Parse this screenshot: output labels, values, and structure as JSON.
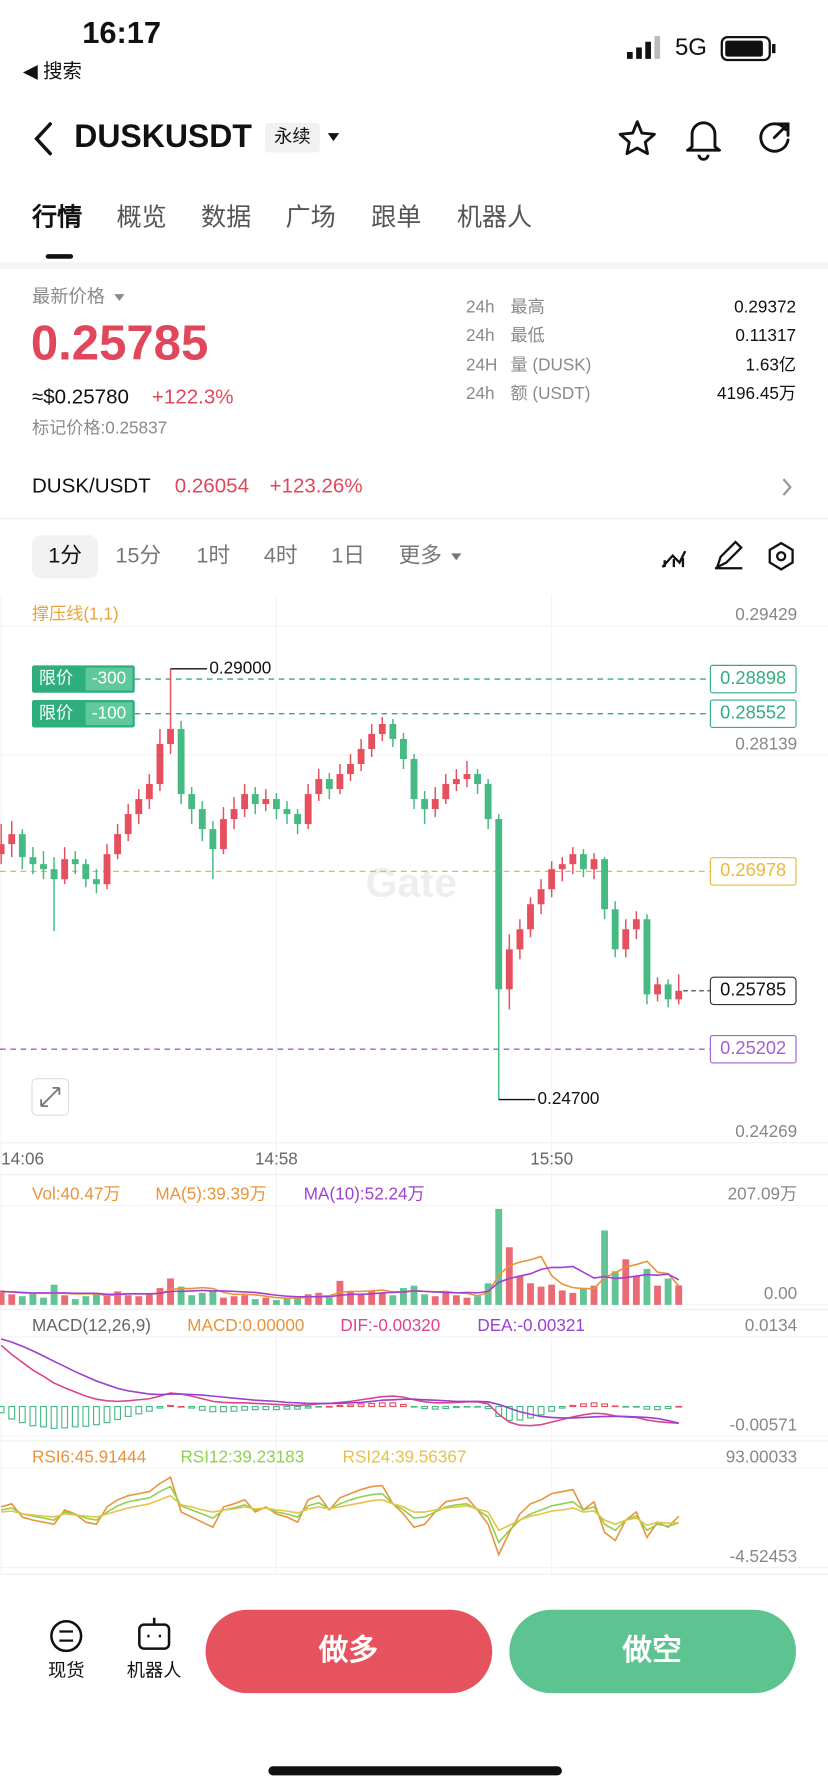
{
  "status": {
    "time": "16:17",
    "back": "◀ 搜索",
    "network": "5G"
  },
  "header": {
    "symbol": "DUSKUSDT",
    "badge": "永续"
  },
  "tabs": [
    "行情",
    "概览",
    "数据",
    "广场",
    "跟单",
    "机器人"
  ],
  "ticker": {
    "price_label": "最新价格",
    "price": "0.25785",
    "usd": "≈$0.25780",
    "change": "+122.3%",
    "mark": "标记价格:0.25837",
    "stats": [
      [
        "24h",
        "最高",
        "0.29372"
      ],
      [
        "24h",
        "最低",
        "0.11317"
      ],
      [
        "24H",
        "量 (DUSK)",
        "1.63亿"
      ],
      [
        "24h",
        "额 (USDT)",
        "4196.45万"
      ]
    ]
  },
  "spot": {
    "pair": "DUSK/USDT",
    "price": "0.26054",
    "change": "+123.26%"
  },
  "intervals": [
    "1分",
    "15分",
    "1时",
    "4时",
    "1日",
    "更多"
  ],
  "chart_data": {
    "type": "candlestick",
    "indicator": "撑压线(1,1)",
    "watermark": "Gate",
    "x": [
      "14:06",
      null,
      null,
      null,
      null,
      null,
      null,
      null,
      null,
      null,
      null,
      null,
      null,
      null,
      null,
      null,
      null,
      null,
      null,
      null,
      null,
      null,
      null,
      null,
      null,
      null,
      "14:58",
      null,
      null,
      null,
      null,
      null,
      null,
      null,
      null,
      null,
      null,
      null,
      null,
      null,
      null,
      null,
      null,
      null,
      null,
      null,
      null,
      null,
      null,
      null,
      null,
      null,
      "15:50",
      null,
      null,
      null,
      null,
      null,
      null,
      null,
      null,
      null,
      null,
      null,
      null
    ],
    "open": [
      0.2715,
      0.2725,
      0.2735,
      0.2712,
      0.2705,
      0.27,
      0.269,
      0.271,
      0.2705,
      0.269,
      0.2685,
      0.2715,
      0.2735,
      0.2755,
      0.277,
      0.2785,
      0.2825,
      0.284,
      0.2775,
      0.276,
      0.274,
      0.272,
      0.275,
      0.276,
      0.2775,
      0.2765,
      0.277,
      0.276,
      0.2755,
      0.2745,
      0.2775,
      0.279,
      0.278,
      0.2795,
      0.2805,
      0.282,
      0.2835,
      0.2845,
      0.283,
      0.281,
      0.277,
      0.276,
      0.277,
      0.2785,
      0.279,
      0.2795,
      0.2785,
      0.275,
      0.258,
      0.262,
      0.264,
      0.2665,
      0.268,
      0.27,
      0.2705,
      0.2715,
      0.27,
      0.271,
      0.266,
      0.262,
      0.264,
      0.265,
      0.2575,
      0.2585,
      0.257
    ],
    "high": [
      0.2745,
      0.2748,
      0.274,
      0.2722,
      0.2718,
      0.2712,
      0.2722,
      0.2718,
      0.271,
      0.27,
      0.2725,
      0.2745,
      0.2765,
      0.278,
      0.2795,
      0.284,
      0.29,
      0.2848,
      0.2782,
      0.2768,
      0.2748,
      0.2762,
      0.2772,
      0.2785,
      0.2782,
      0.278,
      0.2776,
      0.2768,
      0.276,
      0.2785,
      0.28,
      0.2796,
      0.2805,
      0.2815,
      0.283,
      0.2845,
      0.2852,
      0.285,
      0.2836,
      0.2815,
      0.2778,
      0.2782,
      0.2795,
      0.28,
      0.2808,
      0.28,
      0.279,
      0.2755,
      0.2635,
      0.265,
      0.2672,
      0.269,
      0.2708,
      0.2712,
      0.2722,
      0.272,
      0.2716,
      0.2712,
      0.2668,
      0.265,
      0.2658,
      0.2655,
      0.2592,
      0.259,
      0.2595
    ],
    "low": [
      0.2705,
      0.2712,
      0.27,
      0.2695,
      0.269,
      0.2638,
      0.2685,
      0.2695,
      0.2682,
      0.2676,
      0.268,
      0.271,
      0.2728,
      0.2745,
      0.276,
      0.2778,
      0.2815,
      0.2765,
      0.2745,
      0.2728,
      0.269,
      0.2715,
      0.274,
      0.2752,
      0.2755,
      0.2758,
      0.275,
      0.2745,
      0.2735,
      0.274,
      0.2768,
      0.277,
      0.2775,
      0.2788,
      0.2798,
      0.2812,
      0.2828,
      0.2822,
      0.28,
      0.276,
      0.2745,
      0.2752,
      0.2765,
      0.2778,
      0.2782,
      0.2775,
      0.274,
      0.247,
      0.256,
      0.261,
      0.2632,
      0.2655,
      0.2672,
      0.2688,
      0.2695,
      0.2692,
      0.269,
      0.265,
      0.2612,
      0.2612,
      0.263,
      0.2565,
      0.2568,
      0.2562,
      0.2565
    ],
    "close": [
      0.2725,
      0.2735,
      0.2712,
      0.2705,
      0.27,
      0.269,
      0.271,
      0.2705,
      0.269,
      0.2685,
      0.2715,
      0.2735,
      0.2755,
      0.277,
      0.2785,
      0.2825,
      0.284,
      0.2775,
      0.276,
      0.274,
      0.272,
      0.275,
      0.276,
      0.2775,
      0.2765,
      0.277,
      0.276,
      0.2755,
      0.2745,
      0.2775,
      0.279,
      0.278,
      0.2795,
      0.2805,
      0.282,
      0.2835,
      0.2845,
      0.283,
      0.281,
      0.277,
      0.276,
      0.277,
      0.2785,
      0.279,
      0.2795,
      0.2785,
      0.275,
      0.258,
      0.262,
      0.264,
      0.2665,
      0.268,
      0.27,
      0.2705,
      0.2715,
      0.27,
      0.271,
      0.266,
      0.262,
      0.264,
      0.265,
      0.2575,
      0.2585,
      0.257,
      0.25785
    ],
    "up_color": "#e6505e",
    "down_color": "#47b983",
    "ylim": [
      0.24269,
      0.29429
    ],
    "yticks": [
      0.29429,
      0.28139,
      0.24269
    ],
    "levels": [
      {
        "value": 0.28898,
        "color": "#2fae7d",
        "tag": "限价",
        "qty": "-300"
      },
      {
        "value": 0.28552,
        "color": "#2fae7d",
        "tag": "限价",
        "qty": "-100"
      },
      {
        "value": 0.26978,
        "color": "#e9b93a"
      },
      {
        "value": 0.25202,
        "color": "#a45fd6"
      }
    ],
    "extremes": [
      {
        "value": 0.29,
        "label": "0.29000"
      },
      {
        "value": 0.247,
        "label": "0.24700"
      }
    ],
    "volume": {
      "legend": [
        {
          "text": "Vol:40.47万",
          "color": "#e8943a"
        },
        {
          "text": "MA(5):39.39万",
          "color": "#e8943a"
        },
        {
          "text": "MA(10):52.24万",
          "color": "#a33fcf"
        }
      ],
      "values": [
        30,
        22,
        18,
        25,
        15,
        42,
        20,
        12,
        18,
        25,
        22,
        28,
        20,
        18,
        24,
        35,
        55,
        38,
        20,
        25,
        30,
        15,
        18,
        20,
        12,
        15,
        10,
        14,
        18,
        22,
        25,
        15,
        50,
        28,
        22,
        30,
        25,
        20,
        35,
        40,
        22,
        18,
        25,
        20,
        15,
        18,
        45,
        200,
        120,
        60,
        45,
        38,
        42,
        30,
        25,
        35,
        40,
        155,
        70,
        95,
        60,
        75,
        40,
        55,
        40.47
      ],
      "ma5": [
        28,
        27,
        25,
        24,
        24,
        24,
        24,
        23,
        23,
        23,
        19,
        21,
        23,
        23,
        23,
        23,
        32,
        34,
        34,
        36,
        34,
        26,
        22,
        22,
        21,
        18,
        15,
        14,
        14,
        16,
        18,
        19,
        26,
        28,
        28,
        29,
        31,
        27,
        27,
        30,
        28,
        27,
        28,
        25,
        24,
        19,
        25,
        62,
        82,
        89,
        94,
        101,
        61,
        43,
        36,
        34,
        34,
        57,
        67,
        79,
        84,
        91,
        68,
        65,
        39.39
      ],
      "ma10": [
        28,
        27,
        26,
        25,
        25,
        25,
        25,
        24,
        24,
        24,
        22,
        22,
        23,
        23,
        23,
        24,
        28,
        28,
        29,
        30,
        29,
        29,
        28,
        27,
        26,
        23,
        20,
        18,
        17,
        17,
        17,
        17,
        20,
        22,
        22,
        23,
        25,
        26,
        27,
        29,
        28,
        27,
        26,
        25,
        26,
        25,
        28,
        47,
        55,
        60,
        65,
        74,
        78,
        78,
        80,
        68,
        56,
        59,
        55,
        57,
        60,
        63,
        62,
        64,
        52.24
      ],
      "ylim": [
        0,
        207.09
      ],
      "yticks": [
        {
          "value": 207.09,
          "label": "207.09万"
        },
        {
          "value": 0,
          "label": "0.00"
        }
      ]
    },
    "macd": {
      "legend": [
        {
          "text": "MACD(12,26,9)",
          "color": "#666666"
        },
        {
          "text": "MACD:0.00000",
          "color": "#e8943a"
        },
        {
          "text": "DIF:-0.00320",
          "color": "#d9458f"
        },
        {
          "text": "DEA:-0.00321",
          "color": "#9b3fd0"
        }
      ],
      "dif": [
        0.0118,
        0.01,
        0.0085,
        0.007,
        0.0058,
        0.0045,
        0.0036,
        0.0028,
        0.002,
        0.0014,
        0.0011,
        0.001,
        0.0011,
        0.0013,
        0.0015,
        0.002,
        0.0026,
        0.0024,
        0.002,
        0.0015,
        0.001,
        0.0008,
        0.0007,
        0.0007,
        0.0006,
        0.0005,
        0.0004,
        0.0003,
        0.0002,
        0.0003,
        0.0005,
        0.0006,
        0.0008,
        0.001,
        0.0013,
        0.0016,
        0.0019,
        0.002,
        0.0018,
        0.0013,
        0.0009,
        0.0007,
        0.0007,
        0.0008,
        0.0009,
        0.0009,
        0.0005,
        -0.0015,
        -0.003,
        -0.0036,
        -0.0037,
        -0.0035,
        -0.003,
        -0.0025,
        -0.002,
        -0.0016,
        -0.0013,
        -0.0014,
        -0.0018,
        -0.002,
        -0.0021,
        -0.0026,
        -0.0029,
        -0.0031,
        -0.0032
      ],
      "dea": [
        0.013,
        0.0124,
        0.0116,
        0.0107,
        0.0097,
        0.0087,
        0.0077,
        0.0067,
        0.0058,
        0.0049,
        0.0042,
        0.0035,
        0.003,
        0.0027,
        0.0024,
        0.0023,
        0.0024,
        0.0024,
        0.0023,
        0.0022,
        0.002,
        0.0018,
        0.0016,
        0.0014,
        0.0012,
        0.0011,
        0.001,
        0.0008,
        0.0007,
        0.0006,
        0.0006,
        0.0006,
        0.0006,
        0.0007,
        0.0008,
        0.001,
        0.0012,
        0.0013,
        0.0014,
        0.0014,
        0.0013,
        0.0012,
        0.0011,
        0.001,
        0.001,
        0.001,
        0.0009,
        0.0004,
        -0.0003,
        -0.001,
        -0.0015,
        -0.0019,
        -0.0021,
        -0.0022,
        -0.0022,
        -0.0021,
        -0.002,
        -0.0019,
        -0.0019,
        -0.0019,
        -0.002,
        -0.0021,
        -0.0023,
        -0.0027,
        -0.00321
      ],
      "hist": [
        -0.0012,
        -0.0024,
        -0.0031,
        -0.0037,
        -0.0039,
        -0.0042,
        -0.0041,
        -0.0039,
        -0.0038,
        -0.0035,
        -0.0031,
        -0.0025,
        -0.0019,
        -0.0014,
        -0.0009,
        -0.0003,
        0.0002,
        0,
        -0.0003,
        -0.0007,
        -0.001,
        -0.001,
        -0.0009,
        -0.0007,
        -0.0006,
        -0.0006,
        -0.0006,
        -0.0005,
        -0.0005,
        -0.0003,
        -0.0001,
        0,
        0.0002,
        0.0003,
        0.0005,
        0.0006,
        0.0007,
        0.0007,
        0.0004,
        -0.0001,
        -0.0004,
        -0.0005,
        -0.0004,
        -0.0002,
        -0.0001,
        -0.0001,
        -0.0004,
        -0.0019,
        -0.0027,
        -0.0026,
        -0.0022,
        -0.0016,
        -0.0009,
        -0.0003,
        0.0002,
        0.0005,
        0.0007,
        0.0005,
        0.0001,
        -0.0001,
        -0.0001,
        -0.0005,
        -0.0006,
        -0.0004,
        1e-05
      ],
      "ylim": [
        -0.00571,
        0.0134
      ],
      "yticks": [
        0.0134,
        -0.00571
      ]
    },
    "rsi": {
      "legend": [
        {
          "text": "RSI6:45.91444",
          "color": "#e8943a"
        },
        {
          "text": "RSI12:39.23183",
          "color": "#8fd14f"
        },
        {
          "text": "RSI24:39.56367",
          "color": "#e8c14a"
        }
      ],
      "lines": [
        [
          55,
          58,
          45,
          42,
          40,
          38,
          52,
          48,
          40,
          38,
          55,
          62,
          66,
          68,
          70,
          78,
          84,
          50,
          45,
          40,
          35,
          55,
          58,
          62,
          50,
          55,
          48,
          45,
          40,
          62,
          66,
          52,
          64,
          68,
          72,
          75,
          76,
          58,
          48,
          35,
          38,
          50,
          60,
          62,
          64,
          52,
          38,
          8,
          30,
          48,
          58,
          62,
          68,
          70,
          72,
          52,
          60,
          30,
          22,
          42,
          50,
          25,
          40,
          35,
          45.91444
        ],
        [
          52,
          54,
          48,
          46,
          44,
          42,
          50,
          48,
          44,
          42,
          50,
          56,
          60,
          62,
          64,
          70,
          75,
          56,
          52,
          48,
          44,
          52,
          54,
          57,
          52,
          54,
          50,
          48,
          45,
          56,
          59,
          53,
          58,
          62,
          65,
          67,
          68,
          58,
          52,
          44,
          45,
          50,
          55,
          57,
          58,
          52,
          45,
          20,
          32,
          42,
          48,
          52,
          56,
          58,
          60,
          52,
          55,
          38,
          32,
          42,
          46,
          32,
          38,
          36,
          39.23183
        ],
        [
          50,
          51,
          48,
          47,
          46,
          45,
          48,
          47,
          46,
          45,
          48,
          51,
          54,
          56,
          58,
          62,
          66,
          57,
          55,
          52,
          50,
          52,
          53,
          55,
          53,
          54,
          52,
          51,
          49,
          53,
          55,
          53,
          55,
          57,
          59,
          61,
          62,
          58,
          55,
          50,
          50,
          52,
          54,
          55,
          56,
          53,
          50,
          32,
          37,
          42,
          46,
          48,
          51,
          52,
          54,
          50,
          51,
          42,
          38,
          42,
          44,
          37,
          40,
          39,
          39.56367
        ]
      ],
      "ylim": [
        -4.52453,
        93.00033
      ],
      "yticks": [
        93.00033,
        -4.52453
      ]
    }
  },
  "actions": {
    "spot": "现货",
    "bot": "机器人",
    "long": "做多",
    "short": "做空"
  }
}
